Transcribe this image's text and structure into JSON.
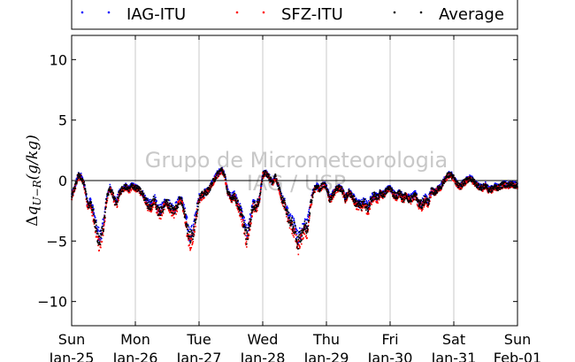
{
  "chart_data": {
    "type": "scatter",
    "ylabel": "Δq_U−R (g/kg)",
    "ylabel_parts": {
      "delta": "Δ",
      "q": "q",
      "sub": "U−R",
      "unit": "(g/kg)"
    },
    "ylim": [
      -12,
      12
    ],
    "yticks": [
      -10,
      -5,
      0,
      5,
      10
    ],
    "ytick_labels": [
      "−10",
      "−5",
      "0",
      "5",
      "10"
    ],
    "xlim": [
      0,
      7
    ],
    "xticks": [
      {
        "pos": 0,
        "day": "Sun",
        "date": "Jan-25"
      },
      {
        "pos": 1,
        "day": "Mon",
        "date": "Jan-26"
      },
      {
        "pos": 2,
        "day": "Tue",
        "date": "Jan-27"
      },
      {
        "pos": 3,
        "day": "Wed",
        "date": "Jan-28"
      },
      {
        "pos": 4,
        "day": "Thu",
        "date": "Jan-29"
      },
      {
        "pos": 5,
        "day": "Fri",
        "date": "Jan-30"
      },
      {
        "pos": 6,
        "day": "Sat",
        "date": "Jan-31"
      },
      {
        "pos": 7,
        "day": "Sun",
        "date": "Feb-01"
      }
    ],
    "grid": "vertical",
    "zero_line": true,
    "legend_position": "top",
    "watermark": [
      "Grupo de Micrometeorologia",
      "IAG / USP"
    ],
    "series": [
      {
        "name": "IAG-ITU",
        "color": "#0000ff",
        "offset": 0.35
      },
      {
        "name": "SFZ-ITU",
        "color": "#ff0000",
        "offset": -0.45
      },
      {
        "name": "Average",
        "color": "#000000",
        "offset": 0.0
      }
    ],
    "x_unit": "days since Sun Jan-25",
    "average_curve": [
      [
        0.0,
        -1.3
      ],
      [
        0.05,
        -0.6
      ],
      [
        0.1,
        0.4
      ],
      [
        0.15,
        0.3
      ],
      [
        0.2,
        -0.4
      ],
      [
        0.25,
        -2.0
      ],
      [
        0.3,
        -1.8
      ],
      [
        0.35,
        -3.0
      ],
      [
        0.4,
        -4.5
      ],
      [
        0.45,
        -5.0
      ],
      [
        0.5,
        -3.8
      ],
      [
        0.55,
        -1.5
      ],
      [
        0.6,
        -0.6
      ],
      [
        0.65,
        -1.2
      ],
      [
        0.7,
        -2.0
      ],
      [
        0.75,
        -1.0
      ],
      [
        0.8,
        -0.7
      ],
      [
        0.85,
        -0.5
      ],
      [
        0.9,
        -0.8
      ],
      [
        0.95,
        -0.4
      ],
      [
        1.0,
        -0.6
      ],
      [
        1.05,
        -0.7
      ],
      [
        1.1,
        -1.0
      ],
      [
        1.15,
        -1.5
      ],
      [
        1.2,
        -2.0
      ],
      [
        1.25,
        -2.1
      ],
      [
        1.3,
        -1.5
      ],
      [
        1.35,
        -2.5
      ],
      [
        1.4,
        -2.6
      ],
      [
        1.45,
        -2.0
      ],
      [
        1.5,
        -1.8
      ],
      [
        1.55,
        -2.2
      ],
      [
        1.6,
        -2.5
      ],
      [
        1.65,
        -2.2
      ],
      [
        1.7,
        -1.5
      ],
      [
        1.75,
        -2.0
      ],
      [
        1.8,
        -3.5
      ],
      [
        1.85,
        -4.8
      ],
      [
        1.9,
        -4.5
      ],
      [
        1.95,
        -3.0
      ],
      [
        2.0,
        -1.5
      ],
      [
        2.05,
        -1.2
      ],
      [
        2.1,
        -1.0
      ],
      [
        2.15,
        -0.8
      ],
      [
        2.2,
        -0.3
      ],
      [
        2.25,
        0.2
      ],
      [
        2.3,
        0.6
      ],
      [
        2.35,
        0.9
      ],
      [
        2.4,
        0.5
      ],
      [
        2.45,
        -1.0
      ],
      [
        2.5,
        -1.5
      ],
      [
        2.55,
        -1.2
      ],
      [
        2.6,
        -1.8
      ],
      [
        2.65,
        -2.5
      ],
      [
        2.7,
        -3.5
      ],
      [
        2.75,
        -4.8
      ],
      [
        2.8,
        -3.5
      ],
      [
        2.85,
        -2.0
      ],
      [
        2.9,
        -2.2
      ],
      [
        2.95,
        -1.5
      ],
      [
        3.0,
        0.5
      ],
      [
        3.05,
        0.6
      ],
      [
        3.1,
        0.3
      ],
      [
        3.15,
        -0.2
      ],
      [
        3.2,
        0.3
      ],
      [
        3.25,
        -0.5
      ],
      [
        3.3,
        -1.5
      ],
      [
        3.35,
        -2.0
      ],
      [
        3.4,
        -3.0
      ],
      [
        3.45,
        -3.5
      ],
      [
        3.5,
        -4.0
      ],
      [
        3.55,
        -5.2
      ],
      [
        3.6,
        -4.5
      ],
      [
        3.65,
        -3.8
      ],
      [
        3.7,
        -4.0
      ],
      [
        3.75,
        -2.0
      ],
      [
        3.8,
        -0.8
      ],
      [
        3.85,
        -0.5
      ],
      [
        3.9,
        -0.7
      ],
      [
        3.95,
        -0.3
      ],
      [
        4.0,
        -0.5
      ],
      [
        4.05,
        -1.5
      ],
      [
        4.1,
        -1.2
      ],
      [
        4.15,
        -0.7
      ],
      [
        4.2,
        -0.6
      ],
      [
        4.25,
        -0.8
      ],
      [
        4.3,
        -1.5
      ],
      [
        4.35,
        -1.0
      ],
      [
        4.4,
        -1.2
      ],
      [
        4.45,
        -1.8
      ],
      [
        4.5,
        -2.0
      ],
      [
        4.55,
        -2.1
      ],
      [
        4.6,
        -1.8
      ],
      [
        4.65,
        -2.4
      ],
      [
        4.7,
        -1.6
      ],
      [
        4.75,
        -1.2
      ],
      [
        4.8,
        -1.5
      ],
      [
        4.85,
        -1.0
      ],
      [
        4.9,
        -1.2
      ],
      [
        4.95,
        -0.8
      ],
      [
        5.0,
        -0.6
      ],
      [
        5.05,
        -1.1
      ],
      [
        5.1,
        -1.3
      ],
      [
        5.15,
        -1.0
      ],
      [
        5.2,
        -1.5
      ],
      [
        5.25,
        -1.2
      ],
      [
        5.3,
        -1.6
      ],
      [
        5.35,
        -1.4
      ],
      [
        5.4,
        -1.2
      ],
      [
        5.45,
        -1.9
      ],
      [
        5.5,
        -2.0
      ],
      [
        5.55,
        -1.5
      ],
      [
        5.6,
        -1.8
      ],
      [
        5.65,
        -0.8
      ],
      [
        5.7,
        -1.0
      ],
      [
        5.75,
        -0.7
      ],
      [
        5.8,
        -0.5
      ],
      [
        5.85,
        0.0
      ],
      [
        5.9,
        0.4
      ],
      [
        5.95,
        0.5
      ],
      [
        6.0,
        0.2
      ],
      [
        6.05,
        -0.3
      ],
      [
        6.1,
        -0.5
      ],
      [
        6.15,
        -0.2
      ],
      [
        6.2,
        0.0
      ],
      [
        6.25,
        0.2
      ],
      [
        6.3,
        0.0
      ],
      [
        6.35,
        -0.3
      ],
      [
        6.4,
        -0.5
      ],
      [
        6.45,
        -0.6
      ],
      [
        6.5,
        -0.4
      ],
      [
        6.55,
        -0.8
      ],
      [
        6.6,
        -0.7
      ],
      [
        6.65,
        -0.5
      ],
      [
        6.7,
        -0.6
      ],
      [
        6.75,
        -0.4
      ],
      [
        6.8,
        -0.3
      ],
      [
        6.85,
        -0.4
      ],
      [
        6.9,
        -0.3
      ],
      [
        6.95,
        -0.4
      ],
      [
        7.0,
        -0.4
      ]
    ]
  }
}
